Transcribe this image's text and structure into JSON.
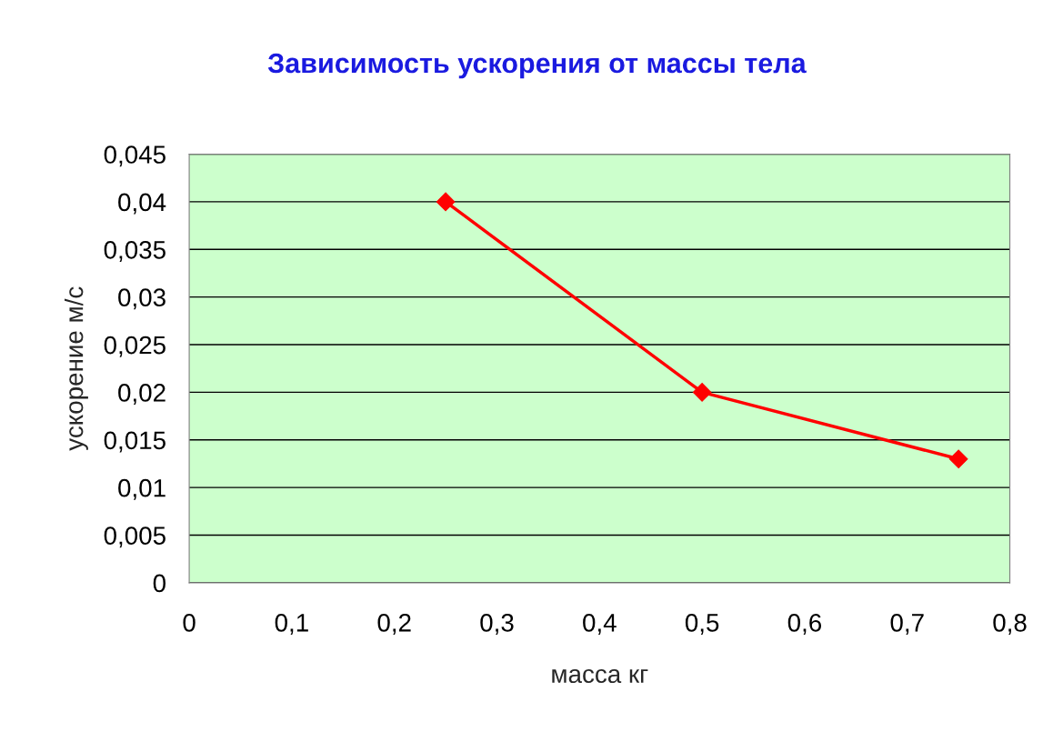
{
  "chart_data": {
    "type": "line",
    "title": "Зависимость ускорения от массы тела",
    "xlabel": "масса кг",
    "ylabel": "ускорение м/с",
    "x": [
      0.25,
      0.5,
      0.75
    ],
    "series": [
      {
        "color": "#ff0000",
        "values": [
          0.04,
          0.02,
          0.013
        ]
      }
    ],
    "xlim": [
      0,
      0.8
    ],
    "ylim": [
      0,
      0.045
    ],
    "xticks": [
      0,
      {
        "value": 0.1,
        "label": "0,1"
      },
      {
        "value": 0.2,
        "label": "0,2"
      },
      {
        "value": 0.3,
        "label": "0,3"
      },
      {
        "value": 0.4,
        "label": "0,4"
      },
      {
        "value": 0.5,
        "label": "0,5"
      },
      {
        "value": 0.6,
        "label": "0,6"
      },
      {
        "value": 0.7,
        "label": "0,7"
      },
      {
        "value": 0.8,
        "label": "0,8"
      }
    ],
    "yticks": [
      0,
      {
        "value": 0.005,
        "label": "0,005"
      },
      {
        "value": 0.01,
        "label": "0,01"
      },
      {
        "value": 0.015,
        "label": "0,015"
      },
      {
        "value": 0.02,
        "label": "0,02"
      },
      {
        "value": 0.025,
        "label": "0,025"
      },
      {
        "value": 0.03,
        "label": "0,03"
      },
      {
        "value": 0.035,
        "label": "0,035"
      },
      {
        "value": 0.04,
        "label": "0,04"
      },
      {
        "value": 0.045,
        "label": "0,045"
      }
    ],
    "grid": "y",
    "marker": "diamond",
    "line_style": "solid"
  }
}
